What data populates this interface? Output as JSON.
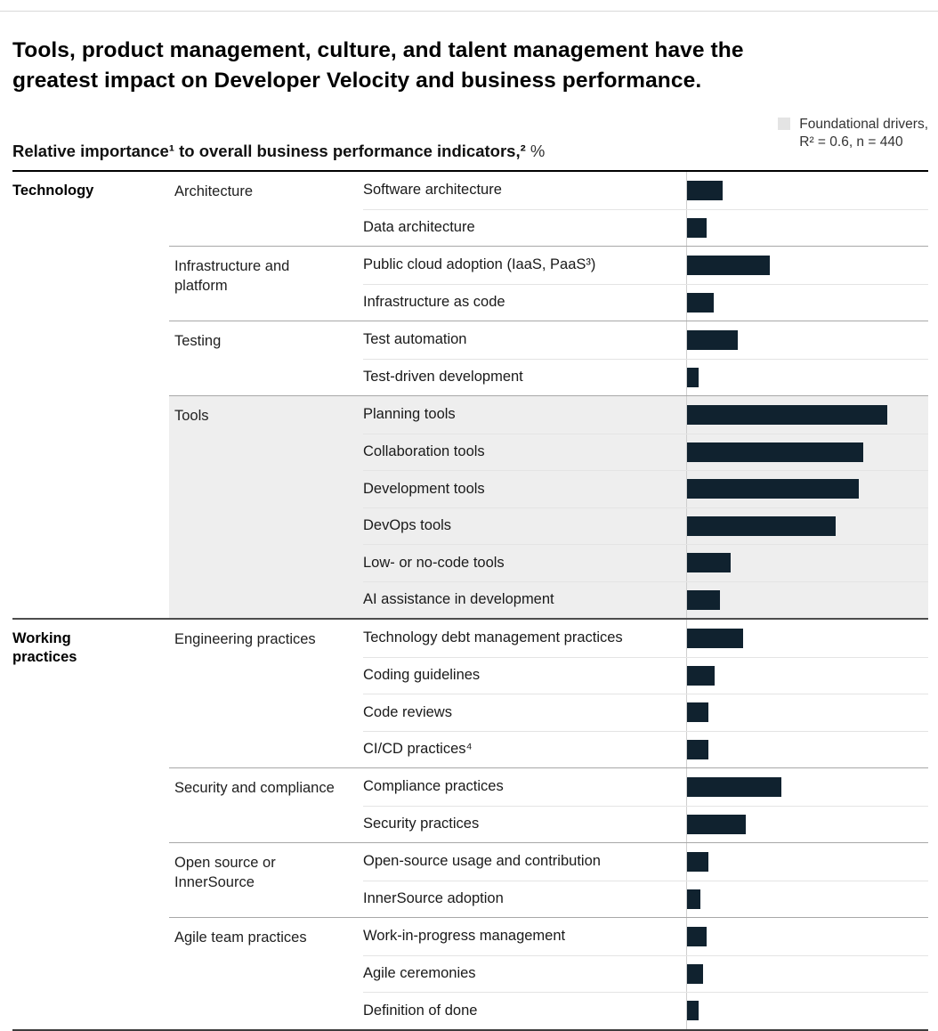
{
  "page": {
    "title_line1": "Tools, product management, culture, and talent management have the",
    "title_line2": "greatest impact on Developer Velocity and business performance."
  },
  "header": {
    "subtitle_main": "Relative importance¹ to overall business performance indicators,²",
    "subtitle_suffix": " %",
    "legend_line1": "Foundational drivers,",
    "legend_line2": "R² = 0.6, n = 440"
  },
  "theme": {
    "bar_color": "#10222f",
    "highlight_bg": "#eeeeee",
    "legend_swatch_color": "#e4e4e4"
  },
  "chart_data": {
    "type": "bar",
    "orientation": "horizontal",
    "title": "Tools, product management, culture, and talent management have the greatest impact on Developer Velocity and business performance.",
    "subtitle": "Relative importance¹ to overall business performance indicators,² %",
    "legend": [
      "Foundational drivers, R² = 0.6, n = 440"
    ],
    "scale_note": "No numeric axis ticks shown; bar_pct is bar length as percent of the plotted bar area width (longest bar ≈ 83%).",
    "sections": [
      {
        "label": "Technology",
        "groups": [
          {
            "label": "Architecture",
            "highlight": false,
            "rows": [
              {
                "label": "Software architecture",
                "bar_pct": 14.7
              },
              {
                "label": "Data architecture",
                "bar_pct": 8.1
              }
            ]
          },
          {
            "label": "Infrastructure and platform",
            "highlight": false,
            "rows": [
              {
                "label": "Public cloud adoption (IaaS, PaaS³)",
                "bar_pct": 34.4
              },
              {
                "label": "Infrastructure as code",
                "bar_pct": 11.0
              }
            ]
          },
          {
            "label": "Testing",
            "highlight": false,
            "rows": [
              {
                "label": "Test automation",
                "bar_pct": 21.2
              },
              {
                "label": "Test-driven development",
                "bar_pct": 4.8
              }
            ]
          },
          {
            "label": "Tools",
            "highlight": true,
            "rows": [
              {
                "label": "Planning tools",
                "bar_pct": 83.2
              },
              {
                "label": "Collaboration tools",
                "bar_pct": 72.9
              },
              {
                "label": "Development tools",
                "bar_pct": 71.4
              },
              {
                "label": "DevOps tools",
                "bar_pct": 61.5
              },
              {
                "label": "Low- or no-code tools",
                "bar_pct": 17.9
              },
              {
                "label": "AI assistance in development",
                "bar_pct": 13.6
              }
            ]
          }
        ]
      },
      {
        "label": "Working practices",
        "groups": [
          {
            "label": "Engineering practices",
            "highlight": false,
            "rows": [
              {
                "label": "Technology debt management practices",
                "bar_pct": 23.4
              },
              {
                "label": "Coding guidelines",
                "bar_pct": 11.4
              },
              {
                "label": "Code reviews",
                "bar_pct": 8.8
              },
              {
                "label": "CI/CD practices⁴",
                "bar_pct": 8.8
              }
            ]
          },
          {
            "label": "Security and compliance",
            "highlight": false,
            "rows": [
              {
                "label": "Compliance practices",
                "bar_pct": 39.2
              },
              {
                "label": "Security practices",
                "bar_pct": 24.5
              }
            ]
          },
          {
            "label": "Open source or InnerSource",
            "highlight": false,
            "rows": [
              {
                "label": "Open-source usage and contribution",
                "bar_pct": 8.8
              },
              {
                "label": "InnerSource adoption",
                "bar_pct": 5.5
              }
            ]
          },
          {
            "label": "Agile team practices",
            "highlight": false,
            "rows": [
              {
                "label": "Work-in-progress management",
                "bar_pct": 8.1
              },
              {
                "label": "Agile ceremonies",
                "bar_pct": 6.6
              },
              {
                "label": "Definition of done",
                "bar_pct": 4.8
              }
            ]
          }
        ]
      }
    ]
  }
}
